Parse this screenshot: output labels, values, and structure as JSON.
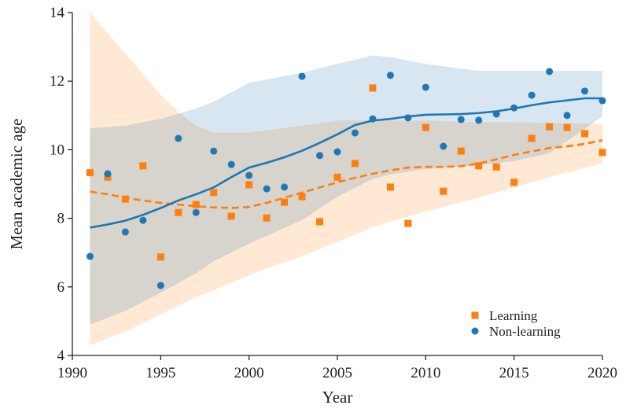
{
  "chart_data": {
    "type": "scatter",
    "x_label": "Year",
    "y_label": "Mean academic age",
    "xlim": [
      1990,
      2020
    ],
    "ylim": [
      4,
      14
    ],
    "xticks": [
      1990,
      1995,
      2000,
      2005,
      2010,
      2015,
      2020
    ],
    "yticks": [
      4,
      6,
      8,
      10,
      12,
      14
    ],
    "legend": "lower right",
    "series": [
      {
        "name": "Learning",
        "color": "#ff7f0e",
        "marker": "square",
        "x": [
          1991,
          1992,
          1993,
          1994,
          1995,
          1996,
          1997,
          1998,
          1999,
          2000,
          2001,
          2002,
          2003,
          2004,
          2005,
          2006,
          2007,
          2008,
          2009,
          2010,
          2011,
          2012,
          2013,
          2014,
          2015,
          2016,
          2017,
          2018,
          2019,
          2020
        ],
        "values": [
          9.33,
          9.2,
          8.56,
          9.53,
          6.87,
          8.17,
          8.4,
          8.75,
          8.06,
          8.98,
          8.01,
          8.47,
          8.63,
          7.9,
          9.2,
          9.6,
          11.8,
          8.91,
          7.85,
          10.65,
          8.79,
          9.96,
          9.53,
          9.5,
          9.05,
          10.33,
          10.67,
          10.65,
          10.47,
          9.92
        ],
        "trend": {
          "line": "dashed",
          "x": [
            1991,
            1992,
            1993,
            1994,
            1995,
            1996,
            1997,
            1998,
            1999,
            2000,
            2001,
            2002,
            2003,
            2004,
            2005,
            2006,
            2007,
            2008,
            2009,
            2010,
            2011,
            2012,
            2013,
            2014,
            2015,
            2016,
            2017,
            2018,
            2019,
            2020
          ],
          "values": [
            8.78,
            8.7,
            8.6,
            8.52,
            8.45,
            8.4,
            8.35,
            8.32,
            8.3,
            8.33,
            8.45,
            8.6,
            8.75,
            8.9,
            9.05,
            9.18,
            9.3,
            9.4,
            9.48,
            9.5,
            9.5,
            9.52,
            9.6,
            9.72,
            9.85,
            9.95,
            10.05,
            10.1,
            10.17,
            10.28
          ]
        },
        "band": {
          "x": [
            1991,
            1992,
            1993,
            1994,
            1995,
            1996,
            1997,
            1998,
            2000,
            2003,
            2005,
            2007,
            2010,
            2013,
            2015,
            2017,
            2020
          ],
          "lower": [
            4.3,
            4.5,
            4.7,
            4.95,
            5.2,
            5.45,
            5.7,
            5.9,
            6.34,
            6.9,
            7.3,
            7.75,
            8.2,
            8.6,
            8.9,
            9.2,
            9.6
          ],
          "upper": [
            14.0,
            13.4,
            12.8,
            12.2,
            11.6,
            11.1,
            10.7,
            10.5,
            10.5,
            10.7,
            10.85,
            10.85,
            10.85,
            10.8,
            10.8,
            10.78,
            10.75
          ]
        }
      },
      {
        "name": "Non-learning",
        "color": "#1f77b4",
        "marker": "circle",
        "x": [
          1991,
          1992,
          1993,
          1994,
          1995,
          1996,
          1997,
          1998,
          1999,
          2000,
          2001,
          2002,
          2003,
          2004,
          2005,
          2006,
          2007,
          2008,
          2009,
          2010,
          2011,
          2012,
          2013,
          2014,
          2015,
          2016,
          2017,
          2018,
          2019,
          2020
        ],
        "values": [
          6.89,
          9.3,
          7.6,
          7.94,
          6.04,
          10.33,
          8.17,
          9.96,
          9.57,
          9.25,
          8.86,
          8.91,
          12.14,
          9.83,
          9.94,
          10.49,
          10.9,
          12.17,
          10.93,
          11.82,
          10.1,
          10.88,
          10.86,
          11.04,
          11.22,
          11.59,
          12.28,
          11.0,
          11.71,
          11.43
        ],
        "trend": {
          "line": "solid",
          "x": [
            1991,
            1992,
            1993,
            1994,
            1995,
            1996,
            1997,
            1998,
            1999,
            2000,
            2001,
            2002,
            2003,
            2004,
            2005,
            2006,
            2007,
            2008,
            2009,
            2010,
            2011,
            2012,
            2013,
            2014,
            2015,
            2016,
            2017,
            2018,
            2019,
            2020
          ],
          "values": [
            7.73,
            7.82,
            7.93,
            8.1,
            8.3,
            8.52,
            8.7,
            8.9,
            9.2,
            9.48,
            9.62,
            9.78,
            9.97,
            10.2,
            10.45,
            10.72,
            10.85,
            10.9,
            10.97,
            11.02,
            11.03,
            11.04,
            11.07,
            11.12,
            11.2,
            11.3,
            11.38,
            11.44,
            11.5,
            11.5
          ]
        },
        "band": {
          "x": [
            1991,
            1993,
            1995,
            1997,
            1998,
            2000,
            2003,
            2005,
            2007,
            2008,
            2010,
            2013,
            2015,
            2017,
            2020
          ],
          "lower": [
            4.9,
            5.3,
            5.83,
            6.4,
            6.75,
            7.26,
            7.95,
            8.63,
            9.15,
            9.28,
            9.44,
            9.55,
            9.67,
            9.9,
            10.97
          ],
          "upper": [
            10.62,
            10.7,
            10.9,
            11.2,
            11.4,
            11.95,
            12.25,
            12.5,
            12.75,
            12.7,
            12.5,
            12.3,
            12.3,
            12.3,
            12.3
          ]
        }
      }
    ]
  }
}
